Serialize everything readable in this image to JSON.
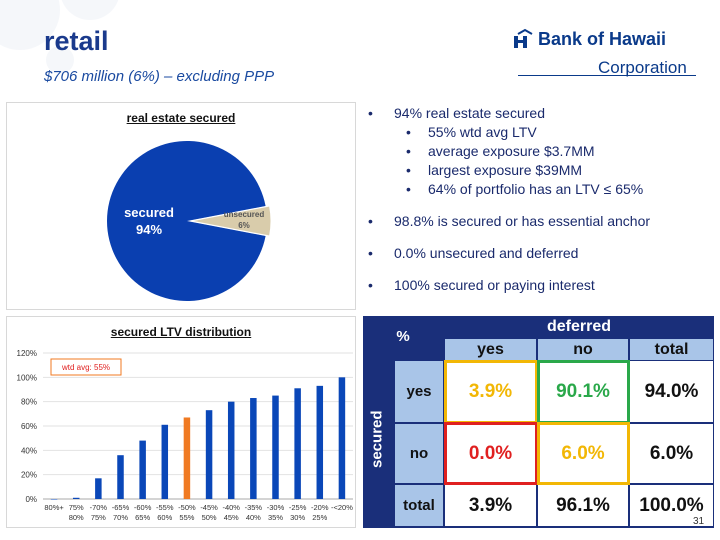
{
  "header": {
    "title": "retail",
    "subtitle": "$706 million (6%) – excluding PPP"
  },
  "logo": {
    "line1": "Bank of Hawaii",
    "line2": "Corporation"
  },
  "colors": {
    "accent": "#1a3a8c",
    "pie_secured": "#0a3fb0",
    "pie_unsecured": "#d9ccab",
    "bar_default": "#0a47b8",
    "bar_highlight": "#f07a22",
    "table_header": "#1a2f7a",
    "table_label": "#a9c5e8",
    "border_yellow": "#f2b705",
    "border_green": "#2aa84a",
    "border_red": "#e02020"
  },
  "bullets": [
    {
      "level": 1,
      "text": "94% real estate secured"
    },
    {
      "level": 2,
      "text": "55% wtd avg LTV"
    },
    {
      "level": 2,
      "text": "average exposure $3.7MM"
    },
    {
      "level": 2,
      "text": "largest exposure $39MM"
    },
    {
      "level": 2,
      "text": "64% of portfolio has an LTV ≤ 65%"
    },
    {
      "level": 1,
      "text": "98.8% is secured or has essential anchor"
    },
    {
      "level": 1,
      "text": "0.0% unsecured and deferred"
    },
    {
      "level": 1,
      "text": "100% secured or paying interest"
    }
  ],
  "chart_data": [
    {
      "type": "pie",
      "title": "real estate secured",
      "slices": [
        {
          "label": "secured",
          "value": 94,
          "value_label": "94%"
        },
        {
          "label": "unsecured",
          "value": 6,
          "value_label": "6%"
        }
      ]
    },
    {
      "type": "bar",
      "title": "secured LTV distribution",
      "annotation": "wtd avg: 55%",
      "categories": [
        "80%+",
        "75% - 80%",
        "70% - 75%",
        "65% - 70%",
        "60% - 65%",
        "55% - 60%",
        "50% - 55%",
        "45% - 50%",
        "40% - 45%",
        "35% - 40%",
        "30% - 35%",
        "25% - 30%",
        "20% - 25%",
        "<20%"
      ],
      "tick_top": [
        "80%+",
        "75%",
        "-70%",
        "-65%",
        "-60%",
        "-55%",
        "-50%",
        "-45%",
        "-40%",
        "-35%",
        "-30%",
        "-25%",
        "-20%",
        "-<20%"
      ],
      "tick_bottom": [
        "",
        "80%",
        "75%",
        "70%",
        "65%",
        "60%",
        "55%",
        "50%",
        "45%",
        "40%",
        "35%",
        "30%",
        "25%",
        ""
      ],
      "values": [
        0,
        1,
        17,
        36,
        48,
        61,
        67,
        73,
        80,
        83,
        85,
        91,
        93,
        100
      ],
      "highlight_index": 6,
      "yticks": [
        "0%",
        "20%",
        "40%",
        "60%",
        "80%",
        "100%",
        "120%"
      ],
      "ylim": [
        0,
        120
      ],
      "grid": true,
      "series": [
        {
          "values": [
            0,
            1,
            17,
            36,
            48,
            61,
            67,
            73,
            80,
            83,
            85,
            91,
            93,
            100
          ]
        }
      ]
    },
    {
      "type": "table",
      "corner": "%",
      "col_group": "deferred",
      "row_group": "secured",
      "columns": [
        "yes",
        "no",
        "total"
      ],
      "rows": [
        {
          "label": "yes",
          "cells": [
            "3.9%",
            "90.1%",
            "94.0%"
          ]
        },
        {
          "label": "no",
          "cells": [
            "0.0%",
            "6.0%",
            "6.0%"
          ]
        },
        {
          "label": "total",
          "cells": [
            "3.9%",
            "96.1%",
            "100.0%"
          ]
        }
      ],
      "cell_colors": [
        [
          "#f2b705",
          "#2aa84a",
          "#111111"
        ],
        [
          "#e02020",
          "#f2b705",
          "#111111"
        ],
        [
          "#111111",
          "#111111",
          "#111111"
        ]
      ]
    }
  ],
  "page_number": "31"
}
